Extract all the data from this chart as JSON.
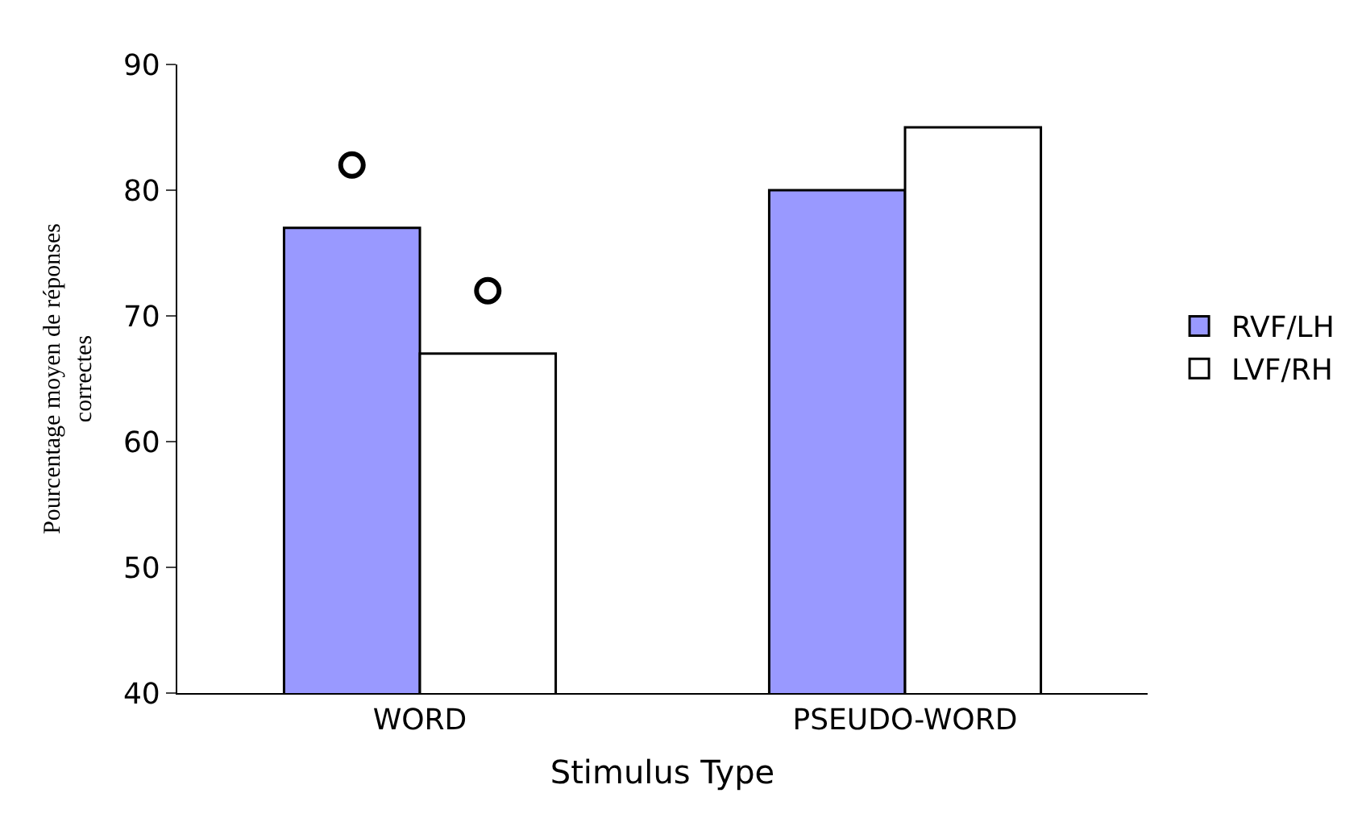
{
  "chart_data": {
    "type": "bar",
    "xlabel": "Stimulus Type",
    "ylabel": "Pourcentage moyen de réponses\ncorrectes",
    "categories": [
      "WORD",
      "PSEUDO-WORD"
    ],
    "series": [
      {
        "name": "RVF/LH",
        "color": "#9999ff",
        "values": [
          77,
          80
        ]
      },
      {
        "name": "LVF/RH",
        "color": "#ffffff",
        "values": [
          67,
          85
        ]
      },
      {
        "type": "scatter",
        "marker": "circle",
        "color": "#000000",
        "values": [
          82,
          null
        ]
      },
      {
        "type": "scatter",
        "marker": "circle",
        "color": "#000000",
        "values": [
          72,
          null
        ]
      }
    ],
    "ylim": [
      40,
      90
    ],
    "yticks": [
      40,
      50,
      60,
      70,
      80,
      90
    ],
    "legend": "right"
  }
}
